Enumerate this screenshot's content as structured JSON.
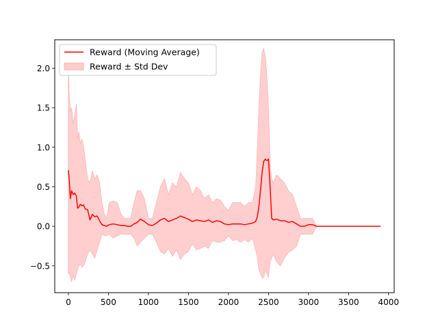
{
  "chart_data": {
    "type": "line",
    "title": "",
    "xlabel": "",
    "ylabel": "",
    "xlim": [
      -170,
      4070
    ],
    "ylim": [
      -0.84,
      2.36
    ],
    "xticks": [
      0,
      500,
      1000,
      1500,
      2000,
      2500,
      3000,
      3500,
      4000
    ],
    "yticks": [
      -0.5,
      0.0,
      0.5,
      1.0,
      1.5,
      2.0
    ],
    "xtick_labels": [
      "0",
      "500",
      "1000",
      "1500",
      "2000",
      "2500",
      "3000",
      "3500",
      "4000"
    ],
    "ytick_labels": [
      "−0.5",
      "0.0",
      "0.5",
      "1.0",
      "1.5",
      "2.0"
    ],
    "grid": false,
    "legend_position": "top-left",
    "series": [
      {
        "name": "Reward (Moving Average)",
        "kind": "line",
        "color": "#ff0000",
        "x": [
          0,
          10,
          25,
          40,
          60,
          80,
          100,
          115,
          130,
          150,
          170,
          190,
          210,
          240,
          270,
          300,
          330,
          360,
          390,
          420,
          450,
          480,
          510,
          560,
          610,
          660,
          700,
          740,
          780,
          820,
          860,
          900,
          950,
          1000,
          1050,
          1100,
          1150,
          1200,
          1250,
          1300,
          1350,
          1400,
          1450,
          1500,
          1550,
          1600,
          1650,
          1700,
          1750,
          1800,
          1850,
          1900,
          1950,
          2000,
          2050,
          2100,
          2150,
          2200,
          2250,
          2300,
          2340,
          2360,
          2380,
          2400,
          2420,
          2440,
          2460,
          2480,
          2500,
          2520,
          2540,
          2560,
          2600,
          2650,
          2700,
          2750,
          2800,
          2850,
          2900,
          2950,
          3000,
          3050,
          3100,
          3500,
          3900
        ],
        "y": [
          0.71,
          0.6,
          0.35,
          0.45,
          0.4,
          0.42,
          0.38,
          0.23,
          0.24,
          0.28,
          0.26,
          0.27,
          0.22,
          0.21,
          0.08,
          0.15,
          0.12,
          0.13,
          0.07,
          0.02,
          0.01,
          0.0,
          0.02,
          0.03,
          0.02,
          0.01,
          0.01,
          0.0,
          0.0,
          0.03,
          0.05,
          0.09,
          0.06,
          0.02,
          0.01,
          0.04,
          0.08,
          0.1,
          0.06,
          0.08,
          0.1,
          0.13,
          0.11,
          0.09,
          0.06,
          0.08,
          0.07,
          0.06,
          0.08,
          0.05,
          0.07,
          0.06,
          0.03,
          0.02,
          0.03,
          0.03,
          0.03,
          0.02,
          0.03,
          0.04,
          0.06,
          0.12,
          0.25,
          0.45,
          0.68,
          0.82,
          0.85,
          0.83,
          0.85,
          0.5,
          0.1,
          0.08,
          0.09,
          0.07,
          0.07,
          0.05,
          0.06,
          0.03,
          0.0,
          0.0,
          0.02,
          0.02,
          0.0,
          0.0,
          0.0
        ]
      },
      {
        "name": "Reward ± Std Dev",
        "kind": "band",
        "color": "#ffcccc",
        "x": [
          0,
          10,
          25,
          40,
          60,
          80,
          100,
          115,
          130,
          150,
          170,
          190,
          210,
          240,
          270,
          300,
          330,
          360,
          390,
          420,
          450,
          480,
          510,
          560,
          610,
          660,
          700,
          740,
          780,
          820,
          860,
          900,
          950,
          1000,
          1050,
          1100,
          1150,
          1200,
          1250,
          1300,
          1350,
          1400,
          1450,
          1500,
          1550,
          1600,
          1650,
          1700,
          1750,
          1800,
          1850,
          1900,
          1950,
          2000,
          2050,
          2100,
          2150,
          2200,
          2250,
          2300,
          2340,
          2360,
          2380,
          2400,
          2420,
          2440,
          2460,
          2480,
          2500,
          2520,
          2540,
          2560,
          2600,
          2650,
          2700,
          2750,
          2800,
          2850,
          2900,
          2950,
          3000,
          3050,
          3100,
          3500,
          3900
        ],
        "upper": [
          2.0,
          1.7,
          1.45,
          1.5,
          1.3,
          1.4,
          1.55,
          1.1,
          1.2,
          1.05,
          1.1,
          1.0,
          0.85,
          0.6,
          0.55,
          0.7,
          0.6,
          0.65,
          0.55,
          0.3,
          0.15,
          0.1,
          0.3,
          0.32,
          0.3,
          0.15,
          0.1,
          0.1,
          0.1,
          0.3,
          0.45,
          0.45,
          0.35,
          0.1,
          0.1,
          0.3,
          0.5,
          0.6,
          0.4,
          0.55,
          0.5,
          0.68,
          0.6,
          0.55,
          0.4,
          0.5,
          0.45,
          0.35,
          0.4,
          0.3,
          0.35,
          0.33,
          0.25,
          0.2,
          0.3,
          0.3,
          0.3,
          0.25,
          0.3,
          0.3,
          0.5,
          1.0,
          1.5,
          1.9,
          2.2,
          2.25,
          2.15,
          1.9,
          1.5,
          0.8,
          0.6,
          0.55,
          0.65,
          0.6,
          0.55,
          0.45,
          0.4,
          0.25,
          0.1,
          0.1,
          0.1,
          0.1,
          0.0,
          0.0,
          0.0
        ],
        "lower": [
          -0.6,
          -0.58,
          -0.65,
          -0.7,
          -0.62,
          -0.68,
          -0.6,
          -0.55,
          -0.5,
          -0.48,
          -0.52,
          -0.5,
          -0.45,
          -0.35,
          -0.3,
          -0.35,
          -0.4,
          -0.3,
          -0.2,
          -0.1,
          -0.12,
          -0.12,
          -0.1,
          -0.15,
          -0.12,
          -0.1,
          -0.1,
          -0.1,
          -0.1,
          -0.15,
          -0.25,
          -0.2,
          -0.15,
          -0.1,
          -0.1,
          -0.2,
          -0.32,
          -0.35,
          -0.28,
          -0.38,
          -0.3,
          -0.42,
          -0.35,
          -0.32,
          -0.22,
          -0.3,
          -0.28,
          -0.25,
          -0.28,
          -0.18,
          -0.2,
          -0.2,
          -0.18,
          -0.12,
          -0.18,
          -0.17,
          -0.2,
          -0.17,
          -0.2,
          -0.15,
          -0.3,
          -0.4,
          -0.55,
          -0.6,
          -0.65,
          -0.65,
          -0.55,
          -0.6,
          -0.65,
          -0.45,
          -0.4,
          -0.35,
          -0.45,
          -0.5,
          -0.4,
          -0.33,
          -0.3,
          -0.25,
          -0.1,
          -0.1,
          -0.1,
          -0.1,
          0.0,
          0.0,
          0.0
        ]
      }
    ]
  }
}
